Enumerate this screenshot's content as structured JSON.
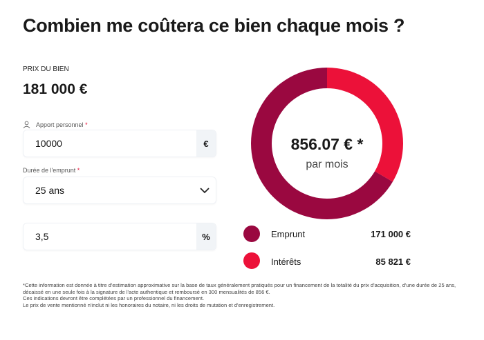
{
  "title": "Combien me coûtera ce bien chaque mois ?",
  "price": {
    "label": "PRIX DU BIEN",
    "value": "181 000 €"
  },
  "apport": {
    "label": "Apport personnel",
    "required": "*",
    "value": "10000",
    "suffix": "€",
    "icon": "user-icon"
  },
  "duree": {
    "label": "Durée de l'emprunt",
    "required": "*",
    "value": "25 ans",
    "icon": "chevron-down-icon"
  },
  "taux": {
    "value": "3,5",
    "suffix": "%"
  },
  "summary": {
    "amount": "856.07 € *",
    "caption": "par mois"
  },
  "chart_data": {
    "type": "pie",
    "title": "856.07 € * par mois",
    "categories": [
      "Emprunt",
      "Intérêts"
    ],
    "values": [
      171000,
      85821
    ],
    "colors": [
      "#9a0840",
      "#ec1139"
    ],
    "value_labels": [
      "171 000 €",
      "85 821 €"
    ]
  },
  "footnote": [
    "*Cette information est donnée à titre d'estimation approximative sur la base de taux généralement pratiqués pour un financement de la totalité du prix d'acquisition, d'une durée de 25 ans, décaissé en une seule fois à la signature de l'acte authentique et remboursé en 300 mensualités de 856 €.",
    "Ces indications devront être complétées par un professionnel du financement.",
    "Le prix de vente mentionné n'inclut ni les honoraires du notaire, ni les droits de mutation et d'enregistrement."
  ]
}
